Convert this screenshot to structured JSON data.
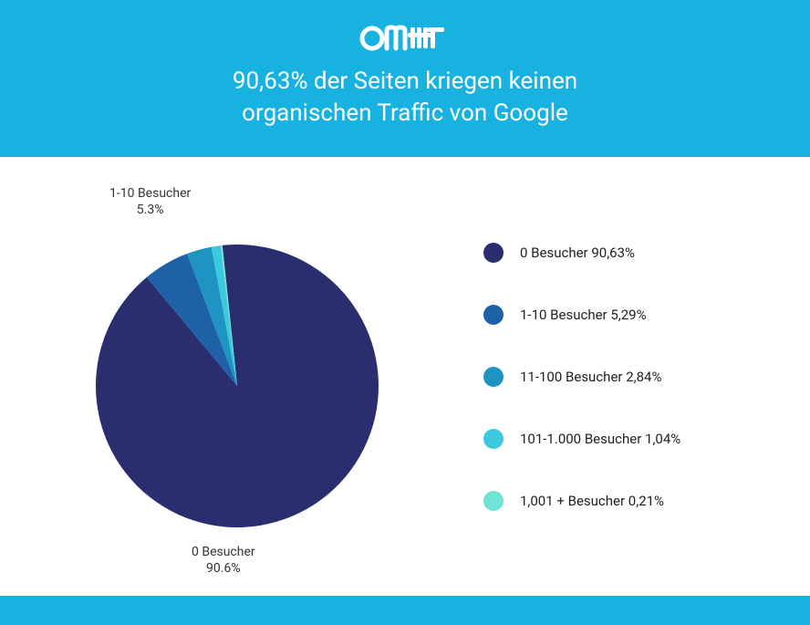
{
  "colors": {
    "header_bg": "#17b2e0",
    "page_bg": "#ffffff",
    "text_dark": "#222222"
  },
  "header": {
    "logo_text": "omt",
    "title_line1": "90,63% der Seiten kriegen keinen",
    "title_line2": "organischen Traffic von Google"
  },
  "chart": {
    "type": "pie",
    "radius": 155,
    "start_angle_deg": -6,
    "slices": [
      {
        "name": "0 Besucher",
        "value": 90.63,
        "color": "#2a2e6e"
      },
      {
        "name": "1-10 Besucher",
        "value": 5.29,
        "color": "#1e61a6"
      },
      {
        "name": "11-100 Besucher",
        "value": 2.84,
        "color": "#1d94c2"
      },
      {
        "name": "101-1.000 Besucher",
        "value": 1.04,
        "color": "#3cc9de"
      },
      {
        "name": "1,001 + Besucher",
        "value": 0.21,
        "color": "#6ee3d6"
      }
    ],
    "callout_top": {
      "label": "1-10 Besucher",
      "value": "5.3%"
    },
    "callout_bottom": {
      "label": "0 Besucher",
      "value": "90.6%"
    }
  },
  "legend": {
    "items": [
      {
        "label": "0 Besucher 90,63%",
        "color": "#2a2e6e"
      },
      {
        "label": "1-10 Besucher 5,29%",
        "color": "#1e61a6"
      },
      {
        "label": "11-100 Besucher 2,84%",
        "color": "#1d94c2"
      },
      {
        "label": "101-1.000 Besucher 1,04%",
        "color": "#3cc9de"
      },
      {
        "label": "1,001 + Besucher 0,21%",
        "color": "#6ee3d6"
      }
    ]
  }
}
